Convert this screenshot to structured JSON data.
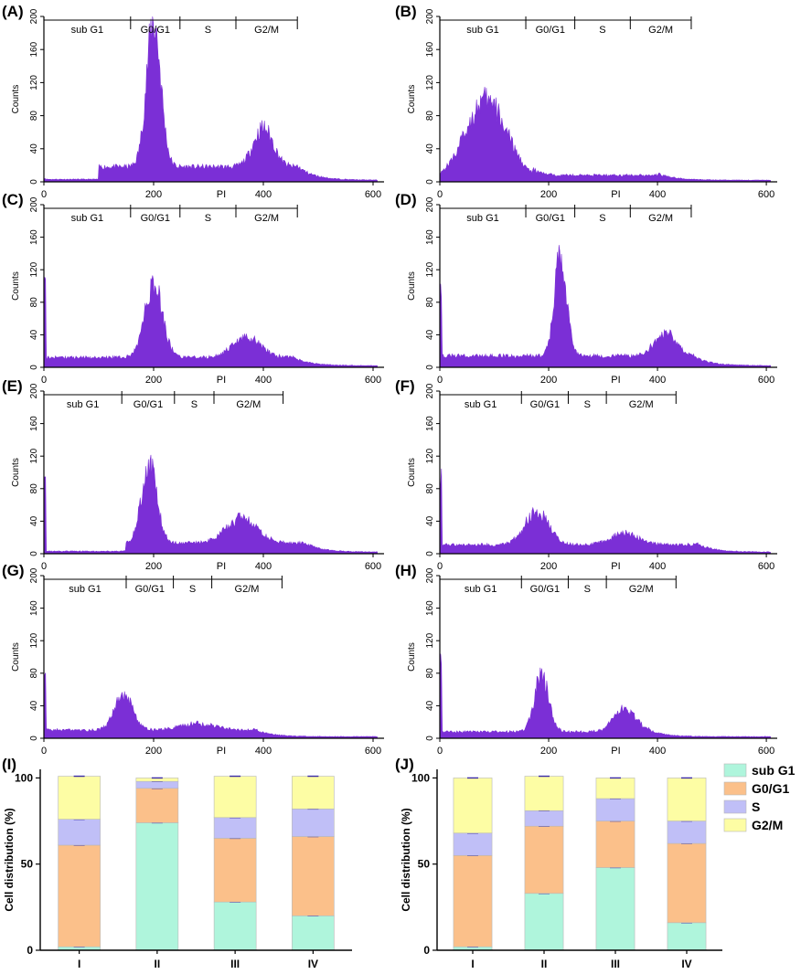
{
  "colors": {
    "histogram": "#7B2FD6",
    "sub_g1": "#AFF5DC",
    "g0_g1": "#FBC08A",
    "s": "#C0BFF7",
    "g2_m": "#FDFDA4",
    "axis": "#000000"
  },
  "chart_data": [
    {
      "id": "A",
      "label": "(A)",
      "type": "histogram",
      "xlabel": "PI",
      "ylabel": "Counts",
      "xticks": [
        0,
        200,
        400,
        600
      ],
      "yticks": [
        0,
        40,
        80,
        120,
        160,
        200
      ],
      "xlim": [
        0,
        620
      ],
      "ylim": [
        0,
        200
      ],
      "gates": [
        "sub G1",
        "G0/G1",
        "S",
        "G2/M"
      ],
      "gate_bounds": [
        0,
        158,
        248,
        350,
        462
      ],
      "peaks": [
        {
          "x": 200,
          "height": 175,
          "width": 13
        },
        {
          "x": 400,
          "height": 47,
          "width": 18
        }
      ],
      "baseline_level": 18,
      "baseline_range": [
        100,
        460
      ],
      "x_end": 608
    },
    {
      "id": "B",
      "label": "(B)",
      "type": "histogram",
      "xlabel": "PI",
      "ylabel": "Counts",
      "xticks": [
        0,
        200,
        400,
        600
      ],
      "yticks": [
        0,
        40,
        80,
        120,
        160,
        200
      ],
      "xlim": [
        0,
        620
      ],
      "ylim": [
        0,
        200
      ],
      "gates": [
        "sub G1",
        "G0/G1",
        "S",
        "G2/M"
      ],
      "gate_bounds": [
        0,
        158,
        248,
        350,
        462
      ],
      "peaks": [
        {
          "x": 85,
          "height": 95,
          "width": 38
        }
      ],
      "baseline_level": 8,
      "baseline_range": [
        170,
        400
      ],
      "x_end": 608
    },
    {
      "id": "C",
      "label": "(C)",
      "type": "histogram",
      "xlabel": "PI",
      "ylabel": "Counts",
      "xticks": [
        0,
        200,
        400,
        600
      ],
      "yticks": [
        0,
        40,
        80,
        120,
        160,
        200
      ],
      "xlim": [
        0,
        620
      ],
      "ylim": [
        0,
        200
      ],
      "gates": [
        "sub G1",
        "G0/G1",
        "S",
        "G2/M"
      ],
      "gate_bounds": [
        0,
        158,
        248,
        350,
        462
      ],
      "peaks": [
        {
          "x": 200,
          "height": 90,
          "width": 16
        },
        {
          "x": 370,
          "height": 25,
          "width": 25
        }
      ],
      "baseline_level": 12,
      "baseline_range": [
        0,
        450
      ],
      "x_end": 608
    },
    {
      "id": "D",
      "label": "(D)",
      "type": "histogram",
      "xlabel": "PI",
      "ylabel": "Counts",
      "xticks": [
        0,
        200,
        400,
        600
      ],
      "yticks": [
        0,
        40,
        80,
        120,
        160,
        200
      ],
      "xlim": [
        0,
        620
      ],
      "ylim": [
        0,
        200
      ],
      "gates": [
        "sub G1",
        "G0/G1",
        "S",
        "G2/M"
      ],
      "gate_bounds": [
        0,
        158,
        248,
        350,
        462
      ],
      "peaks": [
        {
          "x": 222,
          "height": 125,
          "width": 11
        },
        {
          "x": 415,
          "height": 28,
          "width": 20
        }
      ],
      "baseline_level": 14,
      "baseline_range": [
        0,
        460
      ],
      "x_end": 608
    },
    {
      "id": "E",
      "label": "(E)",
      "type": "histogram",
      "xlabel": "PI",
      "ylabel": "Counts",
      "xticks": [
        0,
        200,
        400,
        600
      ],
      "yticks": [
        0,
        40,
        80,
        120,
        160,
        200
      ],
      "xlim": [
        0,
        620
      ],
      "ylim": [
        0,
        200
      ],
      "gates": [
        "sub G1",
        "G0/G1",
        "S",
        "G2/M"
      ],
      "gate_bounds": [
        0,
        142,
        238,
        310,
        436
      ],
      "peaks": [
        {
          "x": 192,
          "height": 95,
          "width": 14
        },
        {
          "x": 360,
          "height": 30,
          "width": 28
        }
      ],
      "baseline_level": 13,
      "baseline_range": [
        150,
        470
      ],
      "x_end": 608
    },
    {
      "id": "F",
      "label": "(F)",
      "type": "histogram",
      "xlabel": "PI",
      "ylabel": "Counts",
      "xticks": [
        0,
        200,
        400,
        600
      ],
      "yticks": [
        0,
        40,
        80,
        120,
        160,
        200
      ],
      "xlim": [
        0,
        620
      ],
      "ylim": [
        0,
        200
      ],
      "gates": [
        "sub G1",
        "G0/G1",
        "S",
        "G2/M"
      ],
      "gate_bounds": [
        0,
        150,
        236,
        306,
        434
      ],
      "peaks": [
        {
          "x": 178,
          "height": 40,
          "width": 22
        },
        {
          "x": 340,
          "height": 14,
          "width": 25
        }
      ],
      "baseline_level": 11,
      "baseline_range": [
        0,
        470
      ],
      "x_end": 608
    },
    {
      "id": "G",
      "label": "(G)",
      "type": "histogram",
      "xlabel": "PI",
      "ylabel": "Counts",
      "xticks": [
        0,
        200,
        400,
        600
      ],
      "yticks": [
        0,
        40,
        80,
        120,
        160,
        200
      ],
      "xlim": [
        0,
        620
      ],
      "ylim": [
        0,
        200
      ],
      "gates": [
        "sub G1",
        "G0/G1",
        "S",
        "G2/M"
      ],
      "gate_bounds": [
        0,
        150,
        236,
        306,
        434
      ],
      "peaks": [
        {
          "x": 145,
          "height": 44,
          "width": 16
        },
        {
          "x": 280,
          "height": 8,
          "width": 30
        }
      ],
      "baseline_level": 10,
      "baseline_range": [
        0,
        380
      ],
      "x_end": 608
    },
    {
      "id": "H",
      "label": "(H)",
      "type": "histogram",
      "xlabel": "PI",
      "ylabel": "Counts",
      "xticks": [
        0,
        200,
        400,
        600
      ],
      "yticks": [
        0,
        40,
        80,
        120,
        160,
        200
      ],
      "xlim": [
        0,
        620
      ],
      "ylim": [
        0,
        200
      ],
      "gates": [
        "sub G1",
        "G0/G1",
        "S",
        "G2/M"
      ],
      "gate_bounds": [
        0,
        150,
        236,
        306,
        434
      ],
      "peaks": [
        {
          "x": 187,
          "height": 70,
          "width": 13
        },
        {
          "x": 340,
          "height": 28,
          "width": 20
        }
      ],
      "baseline_level": 8,
      "baseline_range": [
        0,
        380
      ],
      "x_end": 608
    },
    {
      "id": "I",
      "label": "(I)",
      "type": "bar",
      "stacked": true,
      "ylabel": "Cell distribution (%)",
      "categories": [
        "I",
        "II",
        "III",
        "IV"
      ],
      "ylim": [
        0,
        105
      ],
      "yticks": [
        0,
        50,
        100
      ],
      "series": [
        {
          "name": "sub G1",
          "values": [
            2,
            74,
            28,
            20
          ]
        },
        {
          "name": "G0/G1",
          "values": [
            59,
            20,
            37,
            46
          ]
        },
        {
          "name": "S",
          "values": [
            15,
            4,
            12,
            16
          ]
        },
        {
          "name": "G2/M",
          "values": [
            25,
            2,
            24,
            19
          ]
        }
      ]
    },
    {
      "id": "J",
      "label": "(J)",
      "type": "bar",
      "stacked": true,
      "ylabel": "Cell distribution (%)",
      "categories": [
        "I",
        "II",
        "III",
        "IV"
      ],
      "ylim": [
        0,
        105
      ],
      "yticks": [
        0,
        50,
        100
      ],
      "series": [
        {
          "name": "sub G1",
          "values": [
            2,
            33,
            48,
            16
          ]
        },
        {
          "name": "G0/G1",
          "values": [
            53,
            39,
            27,
            46
          ]
        },
        {
          "name": "S",
          "values": [
            13,
            9,
            13,
            13
          ]
        },
        {
          "name": "G2/M",
          "values": [
            32,
            20,
            12,
            25
          ]
        }
      ]
    }
  ],
  "legend": {
    "items": [
      "sub G1",
      "G0/G1",
      "S",
      "G2/M"
    ]
  }
}
